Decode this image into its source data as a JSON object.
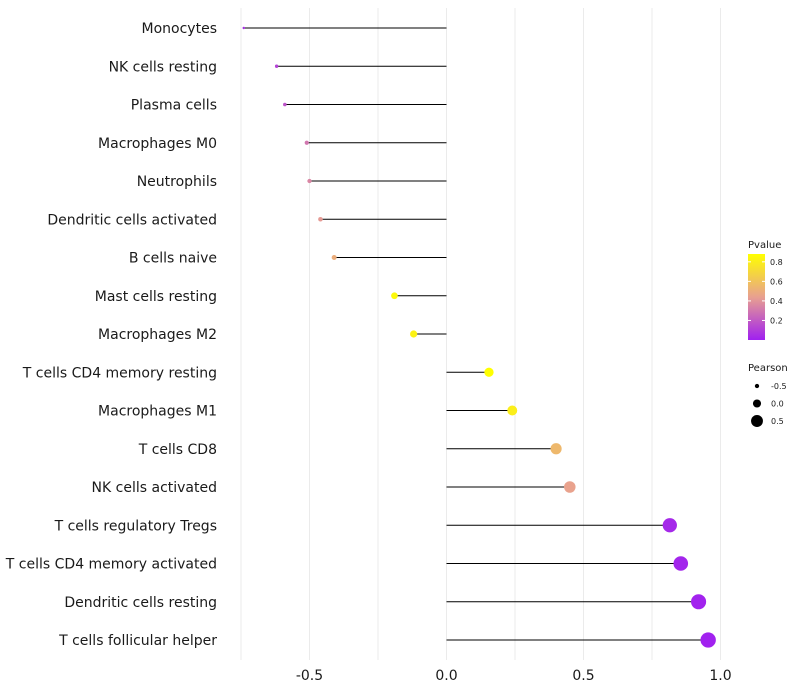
{
  "chart_data": {
    "type": "lollipop",
    "categories": [
      "Monocytes",
      "NK cells resting",
      "Plasma cells",
      "Macrophages M0",
      "Neutrophils",
      "Dendritic cells activated",
      "B cells naive",
      "Mast cells resting",
      "Macrophages M2",
      "T cells CD4 memory resting",
      "Macrophages M1",
      "T cells CD8",
      "NK cells activated",
      "T cells regulatory  Tregs ",
      "T cells CD4 memory activated",
      "Dendritic cells resting",
      "T cells follicular helper"
    ],
    "values": [
      -0.74,
      -0.62,
      -0.59,
      -0.51,
      -0.5,
      -0.46,
      -0.41,
      -0.19,
      -0.12,
      0.155,
      0.24,
      0.4,
      0.45,
      0.815,
      0.855,
      0.92,
      0.955
    ],
    "pvalues": [
      0.05,
      0.12,
      0.18,
      0.3,
      0.35,
      0.42,
      0.5,
      0.85,
      0.82,
      0.88,
      0.8,
      0.55,
      0.45,
      0.03,
      0.02,
      0.01,
      0.005
    ],
    "xlim": [
      -0.75,
      1.0
    ],
    "xticks": [
      -0.5,
      0.0,
      0.5,
      1.0
    ],
    "xtick_labels": [
      "-0.5",
      "0.0",
      "0.5",
      "1.0"
    ],
    "xlabel": "",
    "ylabel": "",
    "legend_pvalue": {
      "title": "Pvalue",
      "ticks": [
        0.8,
        0.6,
        0.4,
        0.2
      ],
      "tick_labels": [
        "0.8",
        "0.6",
        "0.4",
        "0.2"
      ],
      "range": [
        0.0,
        0.88
      ],
      "color_low": "#a020f0",
      "color_mid": "#e8a090",
      "color_high": "#ffff00"
    },
    "legend_pearson": {
      "title": "Pearson",
      "values": [
        -0.5,
        0.0,
        0.5
      ],
      "labels": [
        "-0.5",
        "0.0",
        "0.5"
      ]
    },
    "colors": {
      "grid": "#ebebeb",
      "stem": "#000000",
      "text": "#1a1a1a"
    }
  }
}
